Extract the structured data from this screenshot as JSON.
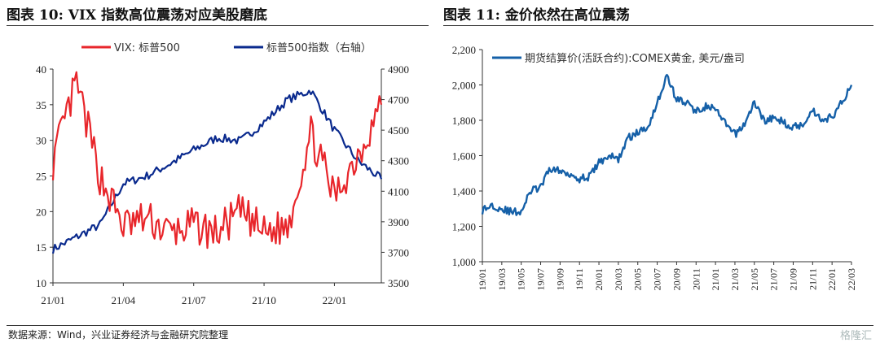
{
  "chart_data": [
    {
      "type": "line",
      "title": "图表 10:  VIX 指数高位震荡对应美股磨底",
      "x_ticks": [
        "21/01",
        "21/04",
        "21/07",
        "21/10",
        "22/01"
      ],
      "x": [
        "21/01",
        "21/02",
        "21/03",
        "21/04",
        "21/05",
        "21/06",
        "21/07",
        "21/08",
        "21/09",
        "21/10",
        "21/11",
        "21/12",
        "22/01",
        "22/02",
        "22/03"
      ],
      "ylim": [
        10,
        40
      ],
      "y_ticks": [
        "40",
        "35",
        "30",
        "25",
        "20",
        "15",
        "10"
      ],
      "y2lim": [
        3500,
        4900
      ],
      "y2_ticks": [
        "4900",
        "4700",
        "4500",
        "4300",
        "4100",
        "3900",
        "3700",
        "3500"
      ],
      "legend_position": "top",
      "series": [
        {
          "name": "VIX: 标普500",
          "axis": "left",
          "color": "#e8262b",
          "values": [
            27,
            38,
            25,
            18,
            19,
            17,
            18,
            17,
            20,
            17,
            18,
            31,
            22,
            28,
            35
          ]
        },
        {
          "name": "标普500指数（右轴）",
          "axis": "right",
          "color": "#0a2a8e",
          "values": [
            3720,
            3800,
            3880,
            4150,
            4200,
            4280,
            4370,
            4450,
            4430,
            4550,
            4700,
            4760,
            4500,
            4300,
            4180
          ]
        }
      ]
    },
    {
      "type": "line",
      "title": "图表 11:  金价依然在高位震荡",
      "x_ticks": [
        "19/01",
        "19/03",
        "19/05",
        "19/07",
        "19/09",
        "19/11",
        "20/01",
        "20/03",
        "20/05",
        "20/07",
        "20/09",
        "20/11",
        "21/01",
        "21/03",
        "21/05",
        "21/07",
        "21/09",
        "21/11",
        "22/01",
        "22/03"
      ],
      "x": [
        "19/01",
        "19/02",
        "19/03",
        "19/04",
        "19/05",
        "19/06",
        "19/07",
        "19/08",
        "19/09",
        "19/10",
        "19/11",
        "19/12",
        "20/01",
        "20/02",
        "20/03",
        "20/04",
        "20/05",
        "20/06",
        "20/07",
        "20/08",
        "20/09",
        "20/10",
        "20/11",
        "20/12",
        "21/01",
        "21/02",
        "21/03",
        "21/04",
        "21/05",
        "21/06",
        "21/07",
        "21/08",
        "21/09",
        "21/10",
        "21/11",
        "21/12",
        "22/01",
        "22/02",
        "22/03"
      ],
      "ylim": [
        1000,
        2200
      ],
      "y_ticks": [
        "2,200",
        "2,000",
        "1,800",
        "1,600",
        "1,400",
        "1,200",
        "1,000"
      ],
      "legend_position": "top",
      "series": [
        {
          "name": "期货结算价(活跃合约):COMEX黄金, 美元/盎司",
          "color": "#1560a8",
          "values": [
            1290,
            1320,
            1300,
            1280,
            1285,
            1400,
            1420,
            1530,
            1510,
            1500,
            1470,
            1480,
            1560,
            1600,
            1580,
            1700,
            1730,
            1760,
            1900,
            2050,
            1920,
            1900,
            1850,
            1880,
            1860,
            1780,
            1720,
            1780,
            1900,
            1800,
            1810,
            1790,
            1760,
            1780,
            1860,
            1800,
            1820,
            1900,
            2000
          ]
        }
      ]
    }
  ],
  "source_text": "数据来源：Wind，兴业证券经济与金融研究院整理",
  "watermark_text": "格隆汇"
}
